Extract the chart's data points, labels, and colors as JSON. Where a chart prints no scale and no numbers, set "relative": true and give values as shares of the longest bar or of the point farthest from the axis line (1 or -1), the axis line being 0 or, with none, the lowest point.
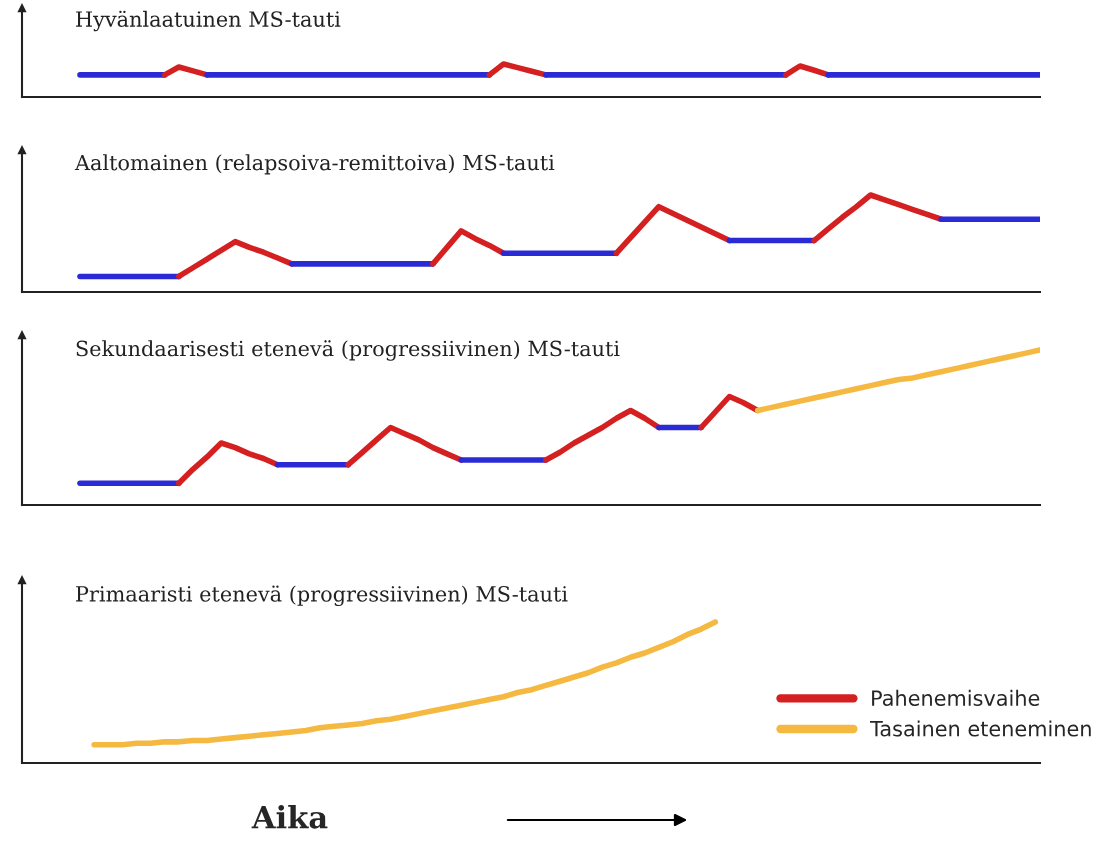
{
  "chart_data": [
    {
      "type": "line",
      "title": "Hyvänlaatuinen MS-tauti",
      "relative": true,
      "tick_labels": false,
      "categories": [
        null,
        null,
        null,
        null,
        null,
        null,
        null,
        null,
        null,
        null,
        null,
        null,
        null,
        null,
        null,
        null,
        null,
        null,
        null,
        null,
        null,
        null,
        null,
        null,
        null,
        null,
        null,
        null,
        null,
        null,
        null,
        null,
        null,
        null,
        null,
        null,
        null,
        null,
        null,
        null,
        null,
        null,
        null,
        null,
        null,
        null,
        null,
        null,
        null,
        null,
        null,
        null,
        null,
        null,
        null,
        null,
        null,
        null,
        null,
        null,
        null,
        null,
        null,
        null,
        null,
        null,
        null,
        null,
        null
      ],
      "series": [
        {
          "color": "#2b2bd6",
          "values": [
            0.67,
            0.67,
            0.67,
            0.67,
            0.67,
            0.67,
            0.67,
            null,
            null,
            null,
            null,
            null,
            null,
            null,
            null,
            null,
            null,
            null,
            null,
            null,
            null,
            null,
            null,
            null,
            null,
            null,
            null,
            null,
            null,
            null,
            null,
            null,
            null,
            null,
            null,
            null,
            null,
            null,
            null,
            null,
            null,
            null,
            null,
            null,
            null,
            null,
            null,
            null,
            null,
            null,
            null,
            null,
            null,
            null,
            null,
            null,
            null,
            null,
            null,
            null,
            null,
            null,
            null,
            null,
            null,
            null,
            null,
            null,
            null
          ]
        },
        {
          "color": "#d42020",
          "values": [
            null,
            null,
            null,
            null,
            null,
            null,
            0.67,
            0.91,
            0.79,
            0.67,
            null,
            null,
            null,
            null,
            null,
            null,
            null,
            null,
            null,
            null,
            null,
            null,
            null,
            null,
            null,
            null,
            null,
            null,
            null,
            null,
            null,
            null,
            null,
            null,
            null,
            null,
            null,
            null,
            null,
            null,
            null,
            null,
            null,
            null,
            null,
            null,
            null,
            null,
            null,
            null,
            null,
            null,
            null,
            null,
            null,
            null,
            null,
            null,
            null,
            null,
            null,
            null,
            null,
            null,
            null,
            null,
            null,
            null,
            null
          ]
        },
        {
          "color": "#2b2bd6",
          "values": [
            null,
            null,
            null,
            null,
            null,
            null,
            null,
            null,
            null,
            0.67,
            0.67,
            0.67,
            0.67,
            0.67,
            0.67,
            0.67,
            0.67,
            0.67,
            0.67,
            0.67,
            0.67,
            0.67,
            0.67,
            0.67,
            0.67,
            0.67,
            0.67,
            0.67,
            0.67,
            0.67,
            null,
            null,
            null,
            null,
            null,
            null,
            null,
            null,
            null,
            null,
            null,
            null,
            null,
            null,
            null,
            null,
            null,
            null,
            null,
            null,
            null,
            null,
            null,
            null,
            null,
            null,
            null,
            null,
            null,
            null,
            null,
            null,
            null,
            null,
            null,
            null,
            null,
            null,
            null
          ]
        },
        {
          "color": "#d42020",
          "values": [
            null,
            null,
            null,
            null,
            null,
            null,
            null,
            null,
            null,
            null,
            null,
            null,
            null,
            null,
            null,
            null,
            null,
            null,
            null,
            null,
            null,
            null,
            null,
            null,
            null,
            null,
            null,
            null,
            null,
            0.67,
            1,
            0.89,
            0.78,
            0.67,
            null,
            null,
            null,
            null,
            null,
            null,
            null,
            null,
            null,
            null,
            null,
            null,
            null,
            null,
            null,
            null,
            null,
            null,
            null,
            null,
            null,
            null,
            null,
            null,
            null,
            null,
            null,
            null,
            null,
            null,
            null,
            null,
            null,
            null,
            null
          ]
        },
        {
          "color": "#2b2bd6",
          "values": [
            null,
            null,
            null,
            null,
            null,
            null,
            null,
            null,
            null,
            null,
            null,
            null,
            null,
            null,
            null,
            null,
            null,
            null,
            null,
            null,
            null,
            null,
            null,
            null,
            null,
            null,
            null,
            null,
            null,
            null,
            null,
            null,
            null,
            0.67,
            0.67,
            0.67,
            0.67,
            0.67,
            0.67,
            0.67,
            0.67,
            0.67,
            0.67,
            0.67,
            0.67,
            0.67,
            0.67,
            0.67,
            0.67,
            0.67,
            0.67,
            null,
            null,
            null,
            null,
            null,
            null,
            null,
            null,
            null,
            null,
            null,
            null,
            null,
            null,
            null,
            null,
            null,
            null
          ]
        },
        {
          "color": "#d42020",
          "values": [
            null,
            null,
            null,
            null,
            null,
            null,
            null,
            null,
            null,
            null,
            null,
            null,
            null,
            null,
            null,
            null,
            null,
            null,
            null,
            null,
            null,
            null,
            null,
            null,
            null,
            null,
            null,
            null,
            null,
            null,
            null,
            null,
            null,
            null,
            null,
            null,
            null,
            null,
            null,
            null,
            null,
            null,
            null,
            null,
            null,
            null,
            null,
            null,
            null,
            null,
            0.67,
            0.94,
            0.81,
            0.67,
            null,
            null,
            null,
            null,
            null,
            null,
            null,
            null,
            null,
            null,
            null,
            null,
            null,
            null,
            null
          ]
        },
        {
          "color": "#2b2bd6",
          "values": [
            null,
            null,
            null,
            null,
            null,
            null,
            null,
            null,
            null,
            null,
            null,
            null,
            null,
            null,
            null,
            null,
            null,
            null,
            null,
            null,
            null,
            null,
            null,
            null,
            null,
            null,
            null,
            null,
            null,
            null,
            null,
            null,
            null,
            null,
            null,
            null,
            null,
            null,
            null,
            null,
            null,
            null,
            null,
            null,
            null,
            null,
            null,
            null,
            null,
            null,
            null,
            null,
            null,
            0.67,
            0.67,
            0.67,
            0.67,
            0.67,
            0.67,
            0.67,
            0.67,
            0.67,
            0.67,
            0.67,
            0.67,
            0.67,
            0.67,
            0.67,
            0.67
          ]
        }
      ]
    },
    {
      "type": "line",
      "title": "Aaltomainen (relapsoiva-remittoiva) MS-tauti",
      "relative": true,
      "tick_labels": false,
      "categories": [
        null,
        null,
        null,
        null,
        null,
        null,
        null,
        null,
        null,
        null,
        null,
        null,
        null,
        null,
        null,
        null,
        null,
        null,
        null,
        null,
        null,
        null,
        null,
        null,
        null,
        null,
        null,
        null,
        null,
        null,
        null,
        null,
        null,
        null,
        null,
        null,
        null,
        null,
        null,
        null,
        null,
        null,
        null,
        null,
        null,
        null,
        null,
        null,
        null,
        null,
        null,
        null,
        null,
        null,
        null,
        null,
        null,
        null,
        null,
        null,
        null,
        null,
        null,
        null,
        null,
        null,
        null,
        null,
        null
      ],
      "series": [
        {
          "color": "#2b2bd6",
          "values": [
            0.16,
            0.16,
            0.16,
            0.16,
            0.16,
            0.16,
            0.16,
            0.16,
            null,
            null,
            null,
            null,
            null,
            null,
            null,
            null,
            null,
            null,
            null,
            null,
            null,
            null,
            null,
            null,
            null,
            null,
            null,
            null,
            null,
            null,
            null,
            null,
            null,
            null,
            null,
            null,
            null,
            null,
            null,
            null,
            null,
            null,
            null,
            null,
            null,
            null,
            null,
            null,
            null,
            null,
            null,
            null,
            null,
            null,
            null,
            null,
            null,
            null,
            null,
            null,
            null,
            null,
            null,
            null,
            null,
            null,
            null,
            null,
            null
          ]
        },
        {
          "color": "#d42020",
          "values": [
            null,
            null,
            null,
            null,
            null,
            null,
            null,
            0.16,
            0.25,
            0.34,
            0.43,
            0.52,
            0.46,
            0.41,
            0.35,
            0.29,
            null,
            null,
            null,
            null,
            null,
            null,
            null,
            null,
            null,
            null,
            null,
            null,
            null,
            null,
            null,
            null,
            null,
            null,
            null,
            null,
            null,
            null,
            null,
            null,
            null,
            null,
            null,
            null,
            null,
            null,
            null,
            null,
            null,
            null,
            null,
            null,
            null,
            null,
            null,
            null,
            null,
            null,
            null,
            null,
            null,
            null,
            null,
            null,
            null,
            null,
            null,
            null,
            null
          ]
        },
        {
          "color": "#2b2bd6",
          "values": [
            null,
            null,
            null,
            null,
            null,
            null,
            null,
            null,
            null,
            null,
            null,
            null,
            null,
            null,
            null,
            0.29,
            0.29,
            0.29,
            0.29,
            0.29,
            0.29,
            0.29,
            0.29,
            0.29,
            0.29,
            0.29,
            null,
            null,
            null,
            null,
            null,
            null,
            null,
            null,
            null,
            null,
            null,
            null,
            null,
            null,
            null,
            null,
            null,
            null,
            null,
            null,
            null,
            null,
            null,
            null,
            null,
            null,
            null,
            null,
            null,
            null,
            null,
            null,
            null,
            null,
            null,
            null,
            null,
            null,
            null,
            null,
            null,
            null,
            null
          ]
        },
        {
          "color": "#d42020",
          "values": [
            null,
            null,
            null,
            null,
            null,
            null,
            null,
            null,
            null,
            null,
            null,
            null,
            null,
            null,
            null,
            null,
            null,
            null,
            null,
            null,
            null,
            null,
            null,
            null,
            null,
            0.29,
            0.46,
            0.63,
            0.55,
            0.48,
            0.4,
            null,
            null,
            null,
            null,
            null,
            null,
            null,
            null,
            null,
            null,
            null,
            null,
            null,
            null,
            null,
            null,
            null,
            null,
            null,
            null,
            null,
            null,
            null,
            null,
            null,
            null,
            null,
            null,
            null,
            null,
            null,
            null,
            null,
            null,
            null,
            null,
            null,
            null
          ]
        },
        {
          "color": "#2b2bd6",
          "values": [
            null,
            null,
            null,
            null,
            null,
            null,
            null,
            null,
            null,
            null,
            null,
            null,
            null,
            null,
            null,
            null,
            null,
            null,
            null,
            null,
            null,
            null,
            null,
            null,
            null,
            null,
            null,
            null,
            null,
            null,
            0.4,
            0.4,
            0.4,
            0.4,
            0.4,
            0.4,
            0.4,
            0.4,
            0.4,
            null,
            null,
            null,
            null,
            null,
            null,
            null,
            null,
            null,
            null,
            null,
            null,
            null,
            null,
            null,
            null,
            null,
            null,
            null,
            null,
            null,
            null,
            null,
            null,
            null,
            null,
            null,
            null,
            null,
            null
          ]
        },
        {
          "color": "#d42020",
          "values": [
            null,
            null,
            null,
            null,
            null,
            null,
            null,
            null,
            null,
            null,
            null,
            null,
            null,
            null,
            null,
            null,
            null,
            null,
            null,
            null,
            null,
            null,
            null,
            null,
            null,
            null,
            null,
            null,
            null,
            null,
            null,
            null,
            null,
            null,
            null,
            null,
            null,
            null,
            0.4,
            0.56,
            0.72,
            0.88,
            0.81,
            0.74,
            0.67,
            0.6,
            0.53,
            null,
            null,
            null,
            null,
            null,
            null,
            null,
            null,
            null,
            null,
            null,
            null,
            null,
            null,
            null,
            null,
            null,
            null,
            null,
            null,
            null,
            null
          ]
        },
        {
          "color": "#2b2bd6",
          "values": [
            null,
            null,
            null,
            null,
            null,
            null,
            null,
            null,
            null,
            null,
            null,
            null,
            null,
            null,
            null,
            null,
            null,
            null,
            null,
            null,
            null,
            null,
            null,
            null,
            null,
            null,
            null,
            null,
            null,
            null,
            null,
            null,
            null,
            null,
            null,
            null,
            null,
            null,
            null,
            null,
            null,
            null,
            null,
            null,
            null,
            null,
            0.53,
            0.53,
            0.53,
            0.53,
            0.53,
            0.53,
            0.53,
            null,
            null,
            null,
            null,
            null,
            null,
            null,
            null,
            null,
            null,
            null,
            null,
            null,
            null,
            null,
            null
          ]
        },
        {
          "color": "#d42020",
          "values": [
            null,
            null,
            null,
            null,
            null,
            null,
            null,
            null,
            null,
            null,
            null,
            null,
            null,
            null,
            null,
            null,
            null,
            null,
            null,
            null,
            null,
            null,
            null,
            null,
            null,
            null,
            null,
            null,
            null,
            null,
            null,
            null,
            null,
            null,
            null,
            null,
            null,
            null,
            null,
            null,
            null,
            null,
            null,
            null,
            null,
            null,
            null,
            null,
            null,
            null,
            null,
            null,
            0.53,
            0.65,
            0.77,
            0.88,
            1,
            0.95,
            0.9,
            0.85,
            0.8,
            0.75,
            null,
            null,
            null,
            null,
            null,
            null,
            null
          ]
        },
        {
          "color": "#2b2bd6",
          "values": [
            null,
            null,
            null,
            null,
            null,
            null,
            null,
            null,
            null,
            null,
            null,
            null,
            null,
            null,
            null,
            null,
            null,
            null,
            null,
            null,
            null,
            null,
            null,
            null,
            null,
            null,
            null,
            null,
            null,
            null,
            null,
            null,
            null,
            null,
            null,
            null,
            null,
            null,
            null,
            null,
            null,
            null,
            null,
            null,
            null,
            null,
            null,
            null,
            null,
            null,
            null,
            null,
            null,
            null,
            null,
            null,
            null,
            null,
            null,
            null,
            null,
            0.75,
            0.75,
            0.75,
            0.75,
            0.75,
            0.75,
            0.75,
            0.75
          ]
        }
      ]
    },
    {
      "type": "line",
      "title": "Sekundaarisesti etenevä (progressiivinen) MS-tauti",
      "relative": true,
      "tick_labels": false,
      "categories": [
        null,
        null,
        null,
        null,
        null,
        null,
        null,
        null,
        null,
        null,
        null,
        null,
        null,
        null,
        null,
        null,
        null,
        null,
        null,
        null,
        null,
        null,
        null,
        null,
        null,
        null,
        null,
        null,
        null,
        null,
        null,
        null,
        null,
        null,
        null,
        null,
        null,
        null,
        null,
        null,
        null,
        null,
        null,
        null,
        null,
        null,
        null,
        null,
        null,
        null,
        null,
        null,
        null,
        null,
        null,
        null,
        null,
        null,
        null,
        null,
        null,
        null,
        null,
        null,
        null,
        null,
        null,
        null,
        null
      ],
      "series": [
        {
          "color": "#2b2bd6",
          "values": [
            0.14,
            0.14,
            0.14,
            0.14,
            0.14,
            0.14,
            0.14,
            0.14,
            null,
            null,
            null,
            null,
            null,
            null,
            null,
            null,
            null,
            null,
            null,
            null,
            null,
            null,
            null,
            null,
            null,
            null,
            null,
            null,
            null,
            null,
            null,
            null,
            null,
            null,
            null,
            null,
            null,
            null,
            null,
            null,
            null,
            null,
            null,
            null,
            null,
            null,
            null,
            null,
            null,
            null,
            null,
            null,
            null,
            null,
            null,
            null,
            null,
            null,
            null,
            null,
            null,
            null,
            null,
            null,
            null,
            null,
            null,
            null,
            null
          ]
        },
        {
          "name": "Pahenemisvaihe",
          "color": "#d42020",
          "values": [
            null,
            null,
            null,
            null,
            null,
            null,
            null,
            0.14,
            0.23,
            0.31,
            0.4,
            0.37,
            0.33,
            0.3,
            0.26,
            null,
            null,
            null,
            null,
            null,
            null,
            null,
            null,
            null,
            null,
            null,
            null,
            null,
            null,
            null,
            null,
            null,
            null,
            null,
            null,
            null,
            null,
            null,
            null,
            null,
            null,
            null,
            null,
            null,
            null,
            null,
            null,
            null,
            null,
            null,
            null,
            null,
            null,
            null,
            null,
            null,
            null,
            null,
            null,
            null,
            null,
            null,
            null,
            null,
            null,
            null,
            null,
            null,
            null
          ]
        },
        {
          "color": "#2b2bd6",
          "values": [
            null,
            null,
            null,
            null,
            null,
            null,
            null,
            null,
            null,
            null,
            null,
            null,
            null,
            null,
            0.26,
            0.26,
            0.26,
            0.26,
            0.26,
            0.26,
            null,
            null,
            null,
            null,
            null,
            null,
            null,
            null,
            null,
            null,
            null,
            null,
            null,
            null,
            null,
            null,
            null,
            null,
            null,
            null,
            null,
            null,
            null,
            null,
            null,
            null,
            null,
            null,
            null,
            null,
            null,
            null,
            null,
            null,
            null,
            null,
            null,
            null,
            null,
            null,
            null,
            null,
            null,
            null,
            null,
            null,
            null,
            null,
            null
          ]
        },
        {
          "color": "#d42020",
          "values": [
            null,
            null,
            null,
            null,
            null,
            null,
            null,
            null,
            null,
            null,
            null,
            null,
            null,
            null,
            null,
            null,
            null,
            null,
            null,
            0.26,
            0.34,
            0.42,
            0.5,
            0.46,
            0.42,
            0.37,
            0.33,
            0.29,
            null,
            null,
            null,
            null,
            null,
            null,
            null,
            null,
            null,
            null,
            null,
            null,
            null,
            null,
            null,
            null,
            null,
            null,
            null,
            null,
            null,
            null,
            null,
            null,
            null,
            null,
            null,
            null,
            null,
            null,
            null,
            null,
            null,
            null,
            null,
            null,
            null,
            null,
            null,
            null,
            null
          ]
        },
        {
          "color": "#2b2bd6",
          "values": [
            null,
            null,
            null,
            null,
            null,
            null,
            null,
            null,
            null,
            null,
            null,
            null,
            null,
            null,
            null,
            null,
            null,
            null,
            null,
            null,
            null,
            null,
            null,
            null,
            null,
            null,
            null,
            0.29,
            0.29,
            0.29,
            0.29,
            0.29,
            0.29,
            0.29,
            null,
            null,
            null,
            null,
            null,
            null,
            null,
            null,
            null,
            null,
            null,
            null,
            null,
            null,
            null,
            null,
            null,
            null,
            null,
            null,
            null,
            null,
            null,
            null,
            null,
            null,
            null,
            null,
            null,
            null,
            null,
            null,
            null,
            null,
            null
          ]
        },
        {
          "color": "#d42020",
          "values": [
            null,
            null,
            null,
            null,
            null,
            null,
            null,
            null,
            null,
            null,
            null,
            null,
            null,
            null,
            null,
            null,
            null,
            null,
            null,
            null,
            null,
            null,
            null,
            null,
            null,
            null,
            null,
            null,
            null,
            null,
            null,
            null,
            null,
            0.29,
            0.34,
            0.4,
            0.45,
            0.5,
            0.56,
            0.61,
            0.56,
            0.5,
            null,
            null,
            null,
            null,
            null,
            null,
            null,
            null,
            null,
            null,
            null,
            null,
            null,
            null,
            null,
            null,
            null,
            null,
            null,
            null,
            null,
            null,
            null,
            null,
            null,
            null,
            null
          ]
        },
        {
          "color": "#2b2bd6",
          "values": [
            null,
            null,
            null,
            null,
            null,
            null,
            null,
            null,
            null,
            null,
            null,
            null,
            null,
            null,
            null,
            null,
            null,
            null,
            null,
            null,
            null,
            null,
            null,
            null,
            null,
            null,
            null,
            null,
            null,
            null,
            null,
            null,
            null,
            null,
            null,
            null,
            null,
            null,
            null,
            null,
            null,
            0.5,
            0.5,
            0.5,
            0.5,
            null,
            null,
            null,
            null,
            null,
            null,
            null,
            null,
            null,
            null,
            null,
            null,
            null,
            null,
            null,
            null,
            null,
            null,
            null,
            null,
            null,
            null,
            null,
            null
          ]
        },
        {
          "color": "#d42020",
          "values": [
            null,
            null,
            null,
            null,
            null,
            null,
            null,
            null,
            null,
            null,
            null,
            null,
            null,
            null,
            null,
            null,
            null,
            null,
            null,
            null,
            null,
            null,
            null,
            null,
            null,
            null,
            null,
            null,
            null,
            null,
            null,
            null,
            null,
            null,
            null,
            null,
            null,
            null,
            null,
            null,
            null,
            null,
            null,
            null,
            0.5,
            0.6,
            0.7,
            0.66,
            0.61,
            null,
            null,
            null,
            null,
            null,
            null,
            null,
            null,
            null,
            null,
            null,
            null,
            null,
            null,
            null,
            null,
            null,
            null,
            null,
            null
          ]
        },
        {
          "color": "#f5b942",
          "values": [
            null,
            null,
            null,
            null,
            null,
            null,
            null,
            null,
            null,
            null,
            null,
            null,
            null,
            null,
            null,
            null,
            null,
            null,
            null,
            null,
            null,
            null,
            null,
            null,
            null,
            null,
            null,
            null,
            null,
            null,
            null,
            null,
            null,
            null,
            null,
            null,
            null,
            null,
            null,
            null,
            null,
            null,
            null,
            null,
            null,
            null,
            null,
            null,
            0.61,
            0.63,
            0.65,
            0.67,
            0.69,
            0.71,
            0.73,
            0.75,
            0.77,
            0.79,
            0.81,
            0.82,
            0.84,
            0.86,
            0.88,
            0.9,
            0.92,
            0.94,
            0.96,
            0.98,
            1
          ]
        }
      ]
    },
    {
      "type": "line",
      "title": "Primaaristi etenevä (progressiivinen) MS-tauti",
      "xlabel": "Aika",
      "relative": true,
      "tick_labels": false,
      "legend": "bottom right",
      "categories": [
        null,
        null,
        null,
        null,
        null,
        null,
        null,
        null,
        null,
        null,
        null,
        null,
        null,
        null,
        null,
        null,
        null,
        null,
        null,
        null,
        null,
        null,
        null,
        null,
        null,
        null,
        null,
        null,
        null,
        null,
        null,
        null,
        null,
        null,
        null,
        null,
        null,
        null,
        null,
        null,
        null,
        null,
        null,
        null,
        null,
        null,
        null,
        null,
        null,
        null,
        null,
        null,
        null,
        null,
        null,
        null,
        null,
        null,
        null,
        null,
        null,
        null,
        null,
        null,
        null,
        null,
        null,
        null,
        null
      ],
      "series": [
        {
          "name": "Tasainen eteneminen",
          "color": "#f5b942",
          "values": [
            null,
            0.13,
            0.13,
            0.13,
            0.14,
            0.14,
            0.15,
            0.15,
            0.16,
            0.16,
            0.17,
            0.18,
            0.19,
            0.2,
            0.21,
            0.22,
            0.23,
            0.25,
            0.26,
            0.27,
            0.28,
            0.3,
            0.31,
            0.33,
            0.35,
            0.37,
            0.39,
            0.41,
            0.43,
            0.45,
            0.47,
            0.5,
            0.52,
            0.55,
            0.58,
            0.61,
            0.64,
            0.68,
            0.71,
            0.75,
            0.78,
            0.82,
            0.86,
            0.91,
            0.95,
            1,
            null,
            null,
            null,
            null,
            null,
            null,
            null,
            null,
            null,
            null,
            null,
            null,
            null,
            null,
            null,
            null,
            null,
            null,
            null,
            null,
            null,
            null,
            null
          ]
        }
      ]
    }
  ]
}
